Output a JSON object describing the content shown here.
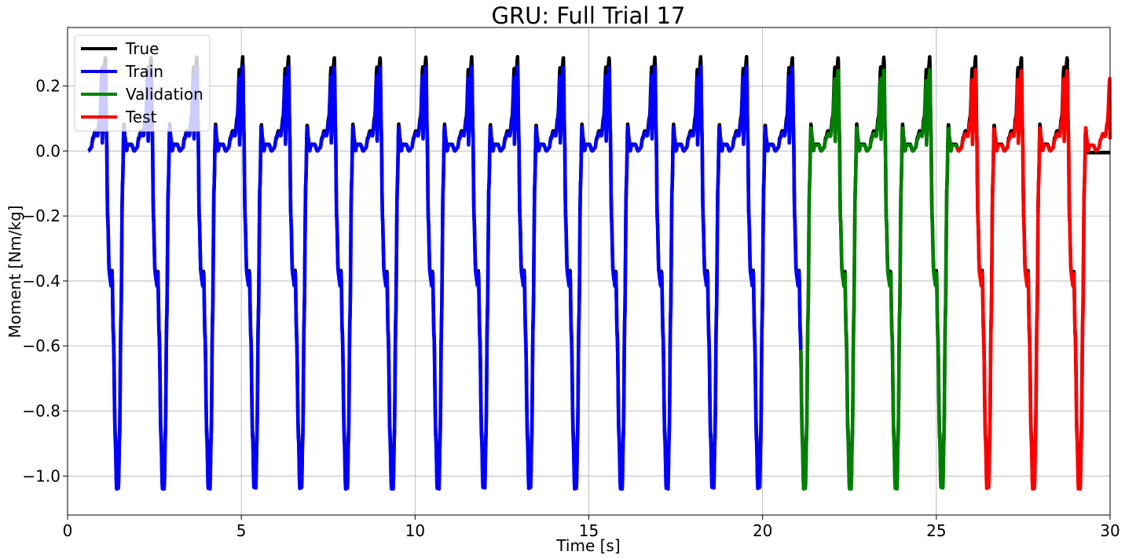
{
  "chart_data": {
    "type": "line",
    "title": "GRU: Full Trial 17",
    "xlabel": "Time [s]",
    "ylabel": "Moment [Nm/kg]",
    "xlim": [
      0,
      30
    ],
    "ylim": [
      -1.12,
      0.38
    ],
    "x_ticks": [
      0,
      5,
      10,
      15,
      20,
      25,
      30
    ],
    "x_tick_labels": [
      "0",
      "5",
      "10",
      "15",
      "20",
      "25",
      "30"
    ],
    "y_ticks": [
      0.2,
      0.0,
      -0.2,
      -0.4,
      -0.6,
      -0.8,
      -1.0
    ],
    "y_tick_labels": [
      "0.2",
      "0.0",
      "−0.2",
      "−0.4",
      "−0.6",
      "−0.8",
      "−1.0"
    ],
    "grid": true,
    "legend_position": "top-left",
    "cycle_period_s": 1.318,
    "series": [
      {
        "name": "True",
        "color": "#000000",
        "x_range": [
          0.6,
          30.0
        ],
        "peak": 0.29,
        "trough": -1.02,
        "flat_after": 29.3,
        "flat_value": -0.005
      },
      {
        "name": "Train",
        "color": "#0000ff",
        "x_range": [
          0.6,
          21.1
        ],
        "peak": 0.26,
        "trough": -1.04
      },
      {
        "name": "Validation",
        "color": "#008000",
        "x_range": [
          21.1,
          25.6
        ],
        "peak": 0.25,
        "trough": -1.04
      },
      {
        "name": "Test",
        "color": "#ff0000",
        "x_range": [
          25.6,
          30.0
        ],
        "peak": 0.25,
        "trough": -1.04
      }
    ]
  },
  "legend": {
    "items": [
      {
        "label": "True",
        "color": "#000000"
      },
      {
        "label": "Train",
        "color": "#0000ff"
      },
      {
        "label": "Validation",
        "color": "#008000"
      },
      {
        "label": "Test",
        "color": "#ff0000"
      }
    ]
  }
}
